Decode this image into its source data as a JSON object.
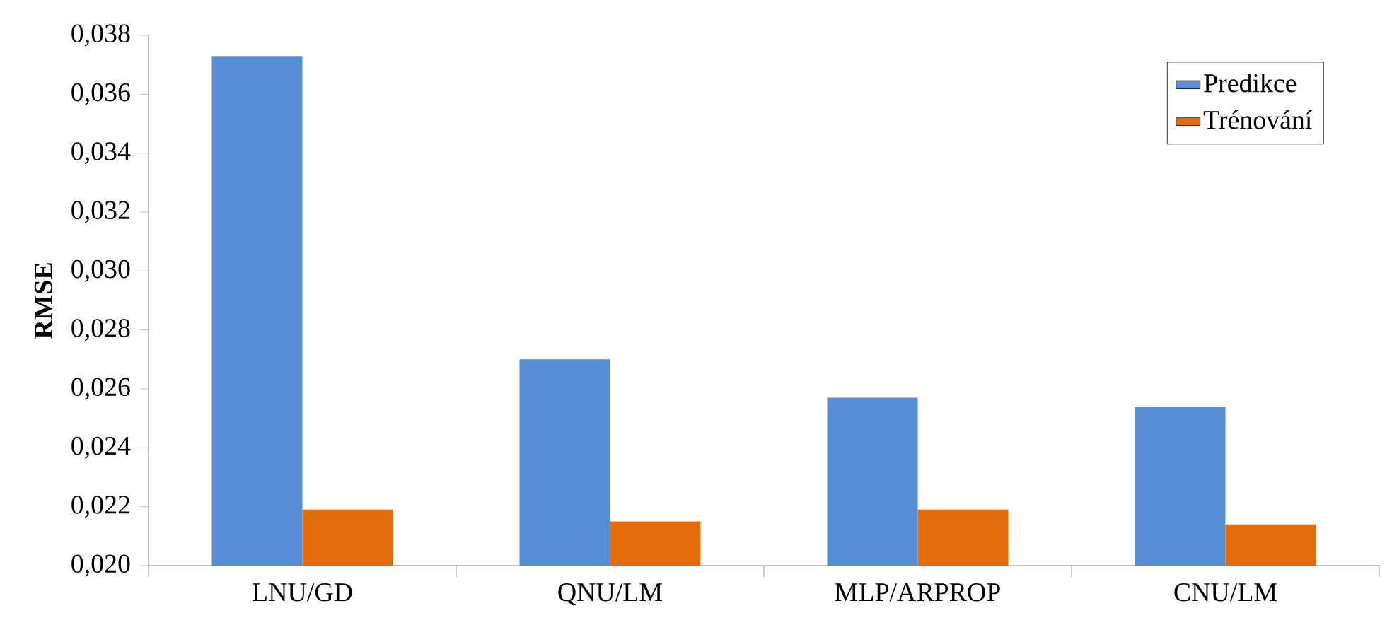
{
  "chart_data": {
    "type": "bar",
    "ylabel": "RMSE",
    "categories": [
      "LNU/GD",
      "QNU/LM",
      "MLP/ARPROP",
      "CNU/LM"
    ],
    "series": [
      {
        "name": "Predikce",
        "color": "#558ed5",
        "values": [
          0.0373,
          0.027,
          0.0257,
          0.0254
        ]
      },
      {
        "name": "Trénování",
        "color": "#e46c0a",
        "values": [
          0.0219,
          0.0215,
          0.0219,
          0.0214
        ]
      }
    ],
    "ylim": [
      0.02,
      0.038
    ],
    "yticks": [
      {
        "value": 0.02,
        "label": "0,020"
      },
      {
        "value": 0.022,
        "label": "0,022"
      },
      {
        "value": 0.024,
        "label": "0,024"
      },
      {
        "value": 0.026,
        "label": "0,026"
      },
      {
        "value": 0.028,
        "label": "0,028"
      },
      {
        "value": 0.03,
        "label": "0,030"
      },
      {
        "value": 0.032,
        "label": "0,032"
      },
      {
        "value": 0.034,
        "label": "0,034"
      },
      {
        "value": 0.036,
        "label": "0,036"
      },
      {
        "value": 0.038,
        "label": "0,038"
      }
    ],
    "grid": false,
    "legend": "top right"
  }
}
